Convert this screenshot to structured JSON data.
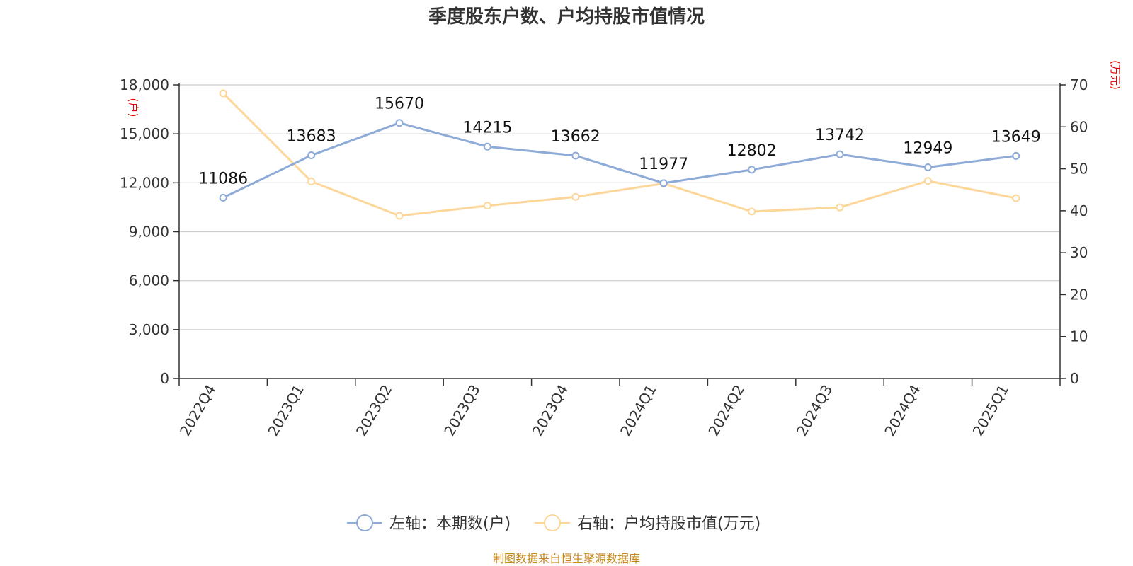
{
  "chart_data": {
    "type": "line",
    "title": "季度股东户数、户均持股市值情况",
    "categories": [
      "2022Q4",
      "2023Q1",
      "2023Q2",
      "2023Q3",
      "2023Q4",
      "2024Q1",
      "2024Q2",
      "2024Q3",
      "2024Q4",
      "2025Q1"
    ],
    "left_axis": {
      "unit": "(户)",
      "ylim": [
        0,
        18000
      ],
      "ticks": [
        0,
        3000,
        6000,
        9000,
        12000,
        15000,
        18000
      ],
      "tick_labels": [
        "0",
        "3,000",
        "6,000",
        "9,000",
        "12,000",
        "15,000",
        "18,000"
      ]
    },
    "right_axis": {
      "unit": "(万元)",
      "ylim": [
        0,
        70
      ],
      "ticks": [
        0,
        10,
        20,
        30,
        40,
        50,
        60,
        70
      ],
      "tick_labels": [
        "0",
        "10",
        "20",
        "30",
        "40",
        "50",
        "60",
        "70"
      ]
    },
    "series": [
      {
        "name": "左轴：本期数(户)",
        "axis": "left",
        "color": "#8eabd8",
        "values": [
          11086,
          13683,
          15670,
          14215,
          13662,
          11977,
          12802,
          13742,
          12949,
          13649
        ],
        "labels": [
          "11086",
          "13683",
          "15670",
          "14215",
          "13662",
          "11977",
          "12802",
          "13742",
          "12949",
          "13649"
        ]
      },
      {
        "name": "右轴：户均持股市值(万元)",
        "axis": "right",
        "color": "#fdd799",
        "values": [
          68.0,
          47.0,
          38.8,
          41.2,
          43.3,
          46.5,
          39.8,
          40.8,
          47.1,
          43.0
        ]
      }
    ],
    "grid": true,
    "legend": "bottom-center",
    "source": "制图数据来自恒生聚源数据库"
  }
}
